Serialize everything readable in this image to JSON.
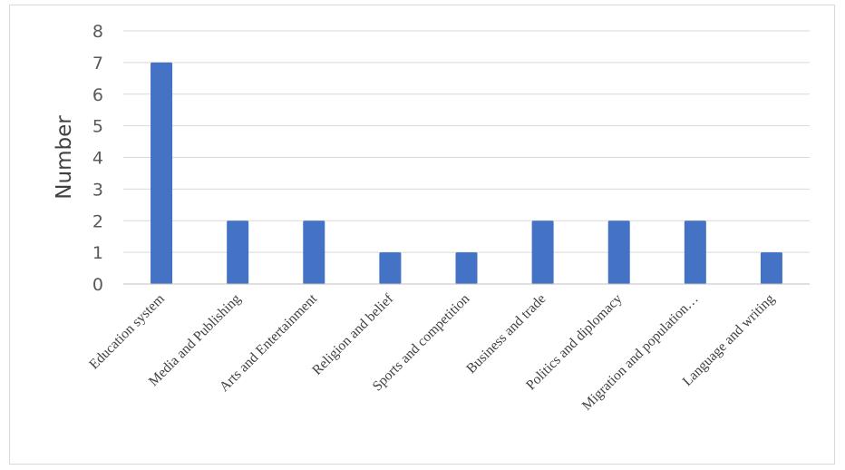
{
  "chart_data": {
    "type": "bar",
    "categories": [
      "Education system",
      "Media and Publishing",
      "Arts and Entertainment",
      "Religion and belief",
      "Sports and competition",
      "Business and trade",
      "Politics and diplomacy",
      "Migration and population…",
      "Language and writing"
    ],
    "values": [
      7,
      2,
      2,
      1,
      1,
      2,
      2,
      2,
      1
    ],
    "yticks": [
      "0",
      "1",
      "2",
      "3",
      "4",
      "5",
      "6",
      "7",
      "8"
    ],
    "ylabel": "Number",
    "xlabel": "",
    "title": "",
    "ylim": [
      0,
      8
    ],
    "grid": true,
    "bar_color": "#4472c4",
    "grid_color": "#d9d9d9",
    "axis_color": "#bfbfbf"
  }
}
